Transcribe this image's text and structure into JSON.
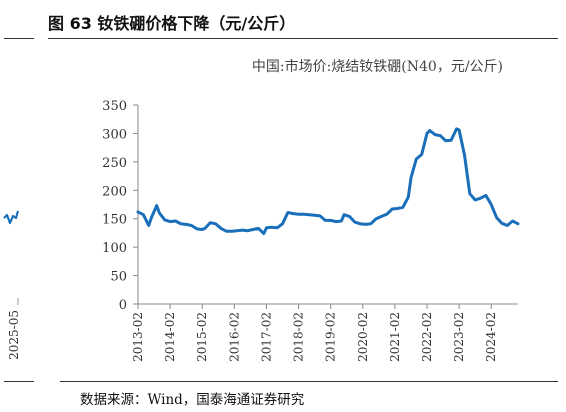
{
  "figure": {
    "title": "图 63  钕铁硼价格下降（元/公斤）",
    "source": "数据来源：Wind，国泰海通证券研究"
  },
  "side_fragment": {
    "tick_label": "2025-05",
    "line_color": "#1a6fba"
  },
  "chart_data": {
    "type": "line",
    "title": "",
    "xlabel": "",
    "ylabel": "",
    "ylim": [
      0,
      350
    ],
    "yticks": [
      0,
      50,
      100,
      150,
      200,
      250,
      300,
      350
    ],
    "xlim": [
      "2013-02",
      "2024-12"
    ],
    "xtick_labels": [
      "2013-02",
      "2014-02",
      "2015-02",
      "2016-02",
      "2017-02",
      "2018-02",
      "2019-02",
      "2020-02",
      "2021-02",
      "2022-02",
      "2023-02",
      "2024-02"
    ],
    "grid": false,
    "legend": "top-right",
    "series": [
      {
        "name": "中国:市场价:烧结钕铁硼(N40，元/公斤)",
        "color": "#1a6fba",
        "x": [
          "2013-02",
          "2013-04",
          "2013-06",
          "2013-07",
          "2013-09",
          "2013-10",
          "2013-12",
          "2014-02",
          "2014-04",
          "2014-06",
          "2014-08",
          "2014-10",
          "2014-12",
          "2015-02",
          "2015-03",
          "2015-05",
          "2015-07",
          "2015-09",
          "2015-11",
          "2016-01",
          "2016-03",
          "2016-05",
          "2016-07",
          "2016-09",
          "2016-11",
          "2017-01",
          "2017-02",
          "2017-04",
          "2017-06",
          "2017-08",
          "2017-10",
          "2017-12",
          "2018-02",
          "2018-04",
          "2018-06",
          "2018-08",
          "2018-10",
          "2018-12",
          "2019-02",
          "2019-04",
          "2019-06",
          "2019-07",
          "2019-09",
          "2019-11",
          "2020-01",
          "2020-03",
          "2020-05",
          "2020-07",
          "2020-09",
          "2020-11",
          "2021-01",
          "2021-03",
          "2021-05",
          "2021-07",
          "2021-08",
          "2021-10",
          "2021-12",
          "2022-02",
          "2022-03",
          "2022-05",
          "2022-07",
          "2022-09",
          "2022-11",
          "2023-01",
          "2023-02",
          "2023-04",
          "2023-06",
          "2023-08",
          "2023-10",
          "2023-12",
          "2024-02",
          "2024-04",
          "2024-06",
          "2024-08",
          "2024-10",
          "2024-12"
        ],
        "values": [
          162,
          157,
          138,
          152,
          173,
          160,
          148,
          145,
          146,
          141,
          140,
          138,
          132,
          131,
          133,
          143,
          141,
          133,
          128,
          128,
          129,
          130,
          129,
          131,
          133,
          124,
          134,
          135,
          134,
          141,
          161,
          159,
          158,
          158,
          157,
          156,
          155,
          147,
          147,
          145,
          146,
          157,
          154,
          144,
          141,
          140,
          141,
          150,
          154,
          158,
          167,
          168,
          170,
          188,
          222,
          255,
          263,
          300,
          305,
          298,
          296,
          287,
          288,
          308,
          306,
          262,
          194,
          183,
          186,
          191,
          175,
          152,
          142,
          138,
          146,
          141
        ]
      }
    ]
  }
}
